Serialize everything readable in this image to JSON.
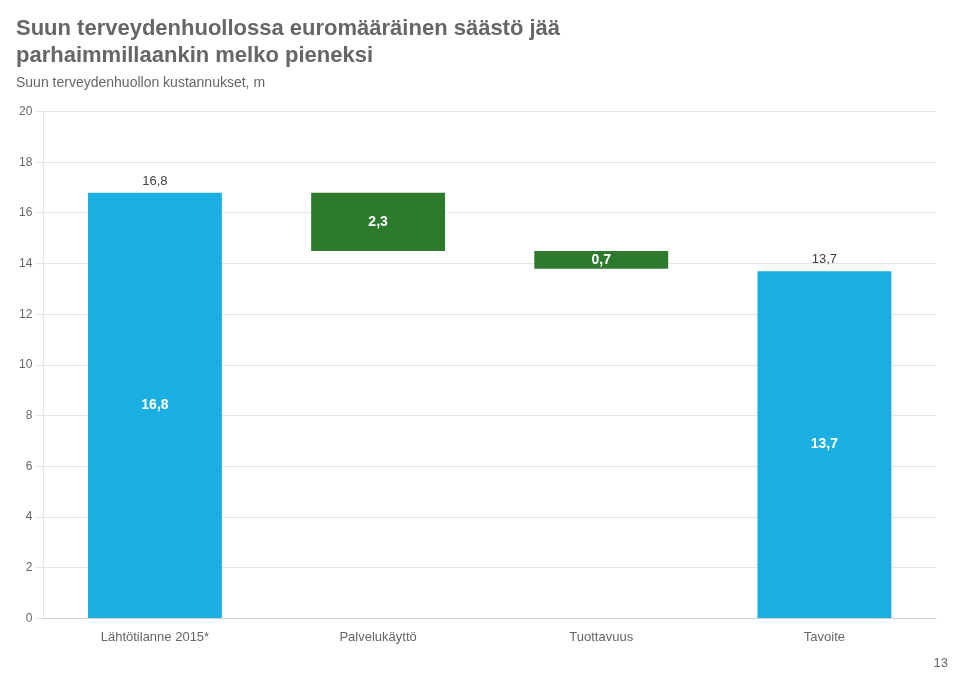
{
  "chart_data": {
    "type": "bar",
    "title": [
      "Suun terveydenhuollossa euromääräinen säästö jää",
      "parhaimmillaankin melko pieneksi"
    ],
    "subtitle": "Suun terveydenhuollon kustannukset, m",
    "categories": [
      "Lähtötilanne 2015*",
      "Palvelukäyttö",
      "Tuottavuus",
      "Tavoite"
    ],
    "bottoms": [
      0,
      14.5,
      13.8,
      0
    ],
    "values": [
      16.8,
      2.3,
      0.7,
      13.7
    ],
    "value_labels": [
      "16,8",
      "2,3",
      "0,7",
      "13,7"
    ],
    "top_labels": [
      "16,8",
      null,
      null,
      "13,7"
    ],
    "colors": [
      "#1BAEE1",
      "#2D7A2D",
      "#2D7A2D",
      "#1BAEE1"
    ],
    "ylim": [
      0,
      20
    ],
    "yticks": [
      0,
      2,
      4,
      6,
      8,
      10,
      12,
      14,
      16,
      18,
      20
    ],
    "grid": true,
    "data_labels": true,
    "page_number": "13"
  }
}
